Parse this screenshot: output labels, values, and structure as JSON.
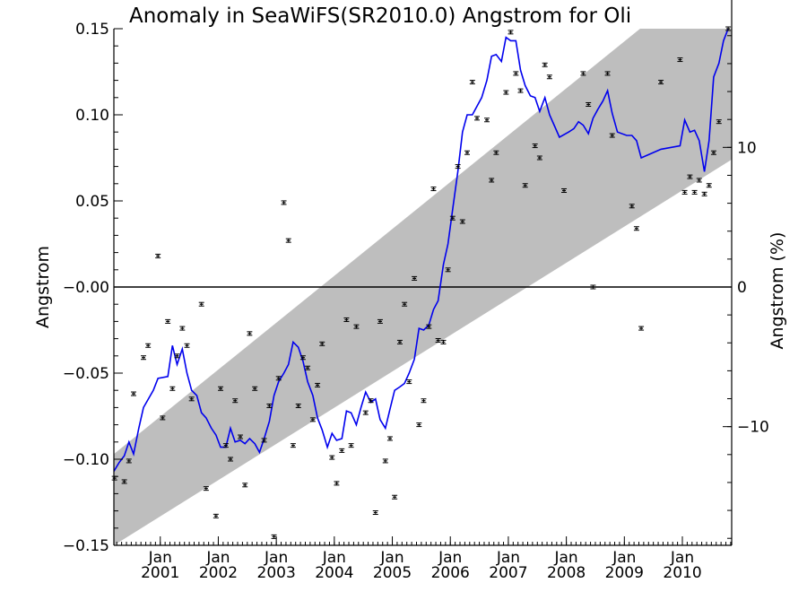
{
  "chart_data": {
    "type": "scatter",
    "title": "Anomaly in SeaWiFS(SR2010.0) Angstrom for Oli",
    "ylabel": "Angstrom",
    "ylabel_right": "Angstrom (%)",
    "xlabel": "",
    "xlim": [
      2000.2,
      2010.85
    ],
    "ylim": [
      -0.15,
      0.15
    ],
    "y2lim": [
      -18.5,
      18.5
    ],
    "y_ticks": [
      -0.15,
      -0.1,
      -0.05,
      0.0,
      0.05,
      0.1,
      0.15
    ],
    "y_tick_labels": [
      "−0.15",
      "−0.10",
      "−0.05",
      "−0.00",
      "0.05",
      "0.10",
      "0.15"
    ],
    "y2_ticks": [
      -10,
      0,
      10
    ],
    "y2_tick_labels": [
      "−10",
      "0",
      "10"
    ],
    "x_ticks": [
      2001.0,
      2002.0,
      2003.0,
      2004.0,
      2005.0,
      2006.0,
      2007.0,
      2008.0,
      2009.0,
      2010.0
    ],
    "x_tick_month": "Jan",
    "x_tick_years": [
      "2001",
      "2002",
      "2003",
      "2004",
      "2005",
      "2006",
      "2007",
      "2008",
      "2009",
      "2010"
    ],
    "zero_line": 0.0,
    "band": {
      "lower": [
        [
          2000.2,
          -0.15
        ],
        [
          2010.85,
          0.074
        ]
      ],
      "upper": [
        [
          2000.2,
          -0.097
        ],
        [
          2010.85,
          0.193
        ]
      ],
      "color": "#bebebe"
    },
    "series": [
      {
        "type": "scatter-errorbar",
        "color": "#000000",
        "error": 0.001,
        "points": [
          [
            2000.21,
            -0.111
          ],
          [
            2000.38,
            -0.113
          ],
          [
            2000.46,
            -0.101
          ],
          [
            2000.54,
            -0.062
          ],
          [
            2000.71,
            -0.041
          ],
          [
            2000.79,
            -0.034
          ],
          [
            2000.96,
            0.018
          ],
          [
            2001.04,
            -0.076
          ],
          [
            2001.13,
            -0.02
          ],
          [
            2001.21,
            -0.059
          ],
          [
            2001.29,
            -0.04
          ],
          [
            2001.38,
            -0.024
          ],
          [
            2001.46,
            -0.034
          ],
          [
            2001.54,
            -0.065
          ],
          [
            2001.71,
            -0.01
          ],
          [
            2001.79,
            -0.117
          ],
          [
            2001.96,
            -0.133
          ],
          [
            2002.04,
            -0.059
          ],
          [
            2002.13,
            -0.092
          ],
          [
            2002.21,
            -0.1
          ],
          [
            2002.29,
            -0.066
          ],
          [
            2002.38,
            -0.087
          ],
          [
            2002.46,
            -0.115
          ],
          [
            2002.54,
            -0.027
          ],
          [
            2002.63,
            -0.059
          ],
          [
            2002.79,
            -0.089
          ],
          [
            2002.88,
            -0.069
          ],
          [
            2002.96,
            -0.145
          ],
          [
            2003.04,
            -0.053
          ],
          [
            2003.13,
            0.049
          ],
          [
            2003.21,
            0.027
          ],
          [
            2003.29,
            -0.092
          ],
          [
            2003.38,
            -0.069
          ],
          [
            2003.46,
            -0.041
          ],
          [
            2003.54,
            -0.047
          ],
          [
            2003.63,
            -0.077
          ],
          [
            2003.71,
            -0.057
          ],
          [
            2003.79,
            -0.033
          ],
          [
            2003.96,
            -0.099
          ],
          [
            2004.04,
            -0.114
          ],
          [
            2004.13,
            -0.095
          ],
          [
            2004.21,
            -0.019
          ],
          [
            2004.29,
            -0.092
          ],
          [
            2004.38,
            -0.023
          ],
          [
            2004.54,
            -0.073
          ],
          [
            2004.63,
            -0.066
          ],
          [
            2004.71,
            -0.131
          ],
          [
            2004.79,
            -0.02
          ],
          [
            2004.88,
            -0.101
          ],
          [
            2004.96,
            -0.088
          ],
          [
            2005.04,
            -0.122
          ],
          [
            2005.13,
            -0.032
          ],
          [
            2005.21,
            -0.01
          ],
          [
            2005.29,
            -0.055
          ],
          [
            2005.38,
            0.005
          ],
          [
            2005.46,
            -0.08
          ],
          [
            2005.54,
            -0.066
          ],
          [
            2005.63,
            -0.023
          ],
          [
            2005.71,
            0.057
          ],
          [
            2005.79,
            -0.031
          ],
          [
            2005.88,
            -0.032
          ],
          [
            2005.96,
            0.01
          ],
          [
            2006.04,
            0.04
          ],
          [
            2006.13,
            0.07
          ],
          [
            2006.21,
            0.038
          ],
          [
            2006.29,
            0.078
          ],
          [
            2006.38,
            0.119
          ],
          [
            2006.46,
            0.098
          ],
          [
            2006.63,
            0.097
          ],
          [
            2006.71,
            0.062
          ],
          [
            2006.79,
            0.078
          ],
          [
            2006.96,
            0.113
          ],
          [
            2007.04,
            0.148
          ],
          [
            2007.13,
            0.124
          ],
          [
            2007.21,
            0.114
          ],
          [
            2007.29,
            0.059
          ],
          [
            2007.46,
            0.082
          ],
          [
            2007.54,
            0.075
          ],
          [
            2007.63,
            0.129
          ],
          [
            2007.71,
            0.122
          ],
          [
            2007.96,
            0.056
          ],
          [
            2008.29,
            0.124
          ],
          [
            2008.38,
            0.106
          ],
          [
            2008.46,
            0.0
          ],
          [
            2008.71,
            0.124
          ],
          [
            2008.79,
            0.088
          ],
          [
            2009.13,
            0.047
          ],
          [
            2009.21,
            0.034
          ],
          [
            2009.29,
            -0.024
          ],
          [
            2009.63,
            0.119
          ],
          [
            2009.96,
            0.132
          ],
          [
            2010.04,
            0.055
          ],
          [
            2010.13,
            0.064
          ],
          [
            2010.21,
            0.055
          ],
          [
            2010.29,
            0.062
          ],
          [
            2010.38,
            0.054
          ],
          [
            2010.46,
            0.059
          ],
          [
            2010.54,
            0.078
          ],
          [
            2010.63,
            0.096
          ],
          [
            2010.79,
            0.15
          ]
        ]
      },
      {
        "type": "line",
        "color": "#0000ee",
        "points": [
          [
            2000.2,
            -0.107
          ],
          [
            2000.29,
            -0.102
          ],
          [
            2000.38,
            -0.098
          ],
          [
            2000.46,
            -0.09
          ],
          [
            2000.54,
            -0.097
          ],
          [
            2000.63,
            -0.082
          ],
          [
            2000.71,
            -0.07
          ],
          [
            2000.88,
            -0.06
          ],
          [
            2000.96,
            -0.053
          ],
          [
            2001.13,
            -0.052
          ],
          [
            2001.21,
            -0.034
          ],
          [
            2001.29,
            -0.045
          ],
          [
            2001.38,
            -0.036
          ],
          [
            2001.46,
            -0.05
          ],
          [
            2001.54,
            -0.06
          ],
          [
            2001.63,
            -0.063
          ],
          [
            2001.71,
            -0.073
          ],
          [
            2001.79,
            -0.076
          ],
          [
            2001.88,
            -0.082
          ],
          [
            2001.96,
            -0.086
          ],
          [
            2002.04,
            -0.093
          ],
          [
            2002.13,
            -0.093
          ],
          [
            2002.21,
            -0.082
          ],
          [
            2002.29,
            -0.09
          ],
          [
            2002.38,
            -0.089
          ],
          [
            2002.46,
            -0.091
          ],
          [
            2002.54,
            -0.088
          ],
          [
            2002.63,
            -0.091
          ],
          [
            2002.71,
            -0.096
          ],
          [
            2002.79,
            -0.088
          ],
          [
            2002.88,
            -0.078
          ],
          [
            2002.96,
            -0.063
          ],
          [
            2003.04,
            -0.055
          ],
          [
            2003.13,
            -0.05
          ],
          [
            2003.21,
            -0.045
          ],
          [
            2003.29,
            -0.032
          ],
          [
            2003.38,
            -0.035
          ],
          [
            2003.46,
            -0.043
          ],
          [
            2003.54,
            -0.055
          ],
          [
            2003.63,
            -0.063
          ],
          [
            2003.71,
            -0.076
          ],
          [
            2003.79,
            -0.083
          ],
          [
            2003.88,
            -0.093
          ],
          [
            2003.96,
            -0.085
          ],
          [
            2004.04,
            -0.089
          ],
          [
            2004.13,
            -0.088
          ],
          [
            2004.21,
            -0.072
          ],
          [
            2004.29,
            -0.073
          ],
          [
            2004.38,
            -0.08
          ],
          [
            2004.46,
            -0.07
          ],
          [
            2004.54,
            -0.061
          ],
          [
            2004.63,
            -0.067
          ],
          [
            2004.71,
            -0.065
          ],
          [
            2004.79,
            -0.077
          ],
          [
            2004.88,
            -0.082
          ],
          [
            2004.96,
            -0.071
          ],
          [
            2005.04,
            -0.06
          ],
          [
            2005.13,
            -0.058
          ],
          [
            2005.21,
            -0.056
          ],
          [
            2005.29,
            -0.05
          ],
          [
            2005.38,
            -0.042
          ],
          [
            2005.46,
            -0.024
          ],
          [
            2005.54,
            -0.025
          ],
          [
            2005.63,
            -0.022
          ],
          [
            2005.71,
            -0.013
          ],
          [
            2005.79,
            -0.008
          ],
          [
            2005.88,
            0.013
          ],
          [
            2005.96,
            0.025
          ],
          [
            2006.04,
            0.045
          ],
          [
            2006.13,
            0.067
          ],
          [
            2006.21,
            0.09
          ],
          [
            2006.29,
            0.1
          ],
          [
            2006.38,
            0.1
          ],
          [
            2006.46,
            0.105
          ],
          [
            2006.54,
            0.11
          ],
          [
            2006.63,
            0.12
          ],
          [
            2006.71,
            0.134
          ],
          [
            2006.79,
            0.135
          ],
          [
            2006.88,
            0.131
          ],
          [
            2006.96,
            0.145
          ],
          [
            2007.04,
            0.143
          ],
          [
            2007.13,
            0.143
          ],
          [
            2007.21,
            0.126
          ],
          [
            2007.29,
            0.117
          ],
          [
            2007.38,
            0.111
          ],
          [
            2007.46,
            0.11
          ],
          [
            2007.54,
            0.102
          ],
          [
            2007.63,
            0.11
          ],
          [
            2007.71,
            0.1
          ],
          [
            2007.79,
            0.094
          ],
          [
            2007.88,
            0.087
          ],
          [
            2008.04,
            0.09
          ],
          [
            2008.13,
            0.092
          ],
          [
            2008.21,
            0.096
          ],
          [
            2008.29,
            0.094
          ],
          [
            2008.38,
            0.089
          ],
          [
            2008.46,
            0.098
          ],
          [
            2008.54,
            0.103
          ],
          [
            2008.63,
            0.108
          ],
          [
            2008.71,
            0.114
          ],
          [
            2008.79,
            0.101
          ],
          [
            2008.88,
            0.09
          ],
          [
            2009.04,
            0.088
          ],
          [
            2009.13,
            0.088
          ],
          [
            2009.21,
            0.085
          ],
          [
            2009.29,
            0.075
          ],
          [
            2009.63,
            0.08
          ],
          [
            2009.96,
            0.082
          ],
          [
            2010.04,
            0.097
          ],
          [
            2010.13,
            0.09
          ],
          [
            2010.21,
            0.091
          ],
          [
            2010.29,
            0.085
          ],
          [
            2010.38,
            0.067
          ],
          [
            2010.46,
            0.085
          ],
          [
            2010.54,
            0.122
          ],
          [
            2010.63,
            0.13
          ],
          [
            2010.71,
            0.143
          ],
          [
            2010.79,
            0.15
          ],
          [
            2010.85,
            0.151
          ]
        ]
      }
    ],
    "legend": "none",
    "grid": false
  }
}
